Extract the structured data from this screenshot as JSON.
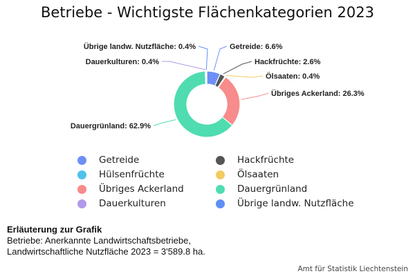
{
  "chart_data": {
    "type": "pie",
    "donut": true,
    "title": "Betriebe - Wichtigste Flächenkategorien 2023",
    "slices": [
      {
        "name": "Getreide",
        "value": 6.6,
        "label": "Getreide: 6.6%",
        "color": "#6d8ff7"
      },
      {
        "name": "Hackfrüchte",
        "value": 2.6,
        "label": "Hackfrüchte: 2.6%",
        "color": "#555555"
      },
      {
        "name": "Hülsenfrüchte",
        "value": 0,
        "label": "",
        "color": "#4fc1ea"
      },
      {
        "name": "Ölsaaten",
        "value": 0.4,
        "label": "Ölsaaten: 0.4%",
        "color": "#f2cb61"
      },
      {
        "name": "Übriges Ackerland",
        "value": 26.3,
        "label": "Übriges Ackerland: 26.3%",
        "color": "#f88b8b"
      },
      {
        "name": "Dauergrünland",
        "value": 62.9,
        "label": "Dauergrünland: 62.9%",
        "color": "#4fdcb0"
      },
      {
        "name": "Dauerkulturen",
        "value": 0.4,
        "label": "Dauerkulturen: 0.4%",
        "color": "#b09aea"
      },
      {
        "name": "Übrige landw. Nutzfläche",
        "value": 0.4,
        "label": "Übrige landw. Nutzfläche: 0.4%",
        "color": "#5f8ff5"
      }
    ],
    "legend_position": "bottom"
  },
  "note": {
    "heading": "Erläuterung zur Grafik",
    "line1": "Betriebe: Anerkannte Landwirtschaftsbetriebe,",
    "line2": "Landwirtschaftliche Nutzfläche 2023 = 3'589.8 ha."
  },
  "source": "Amt für Statistik Liechtenstein"
}
